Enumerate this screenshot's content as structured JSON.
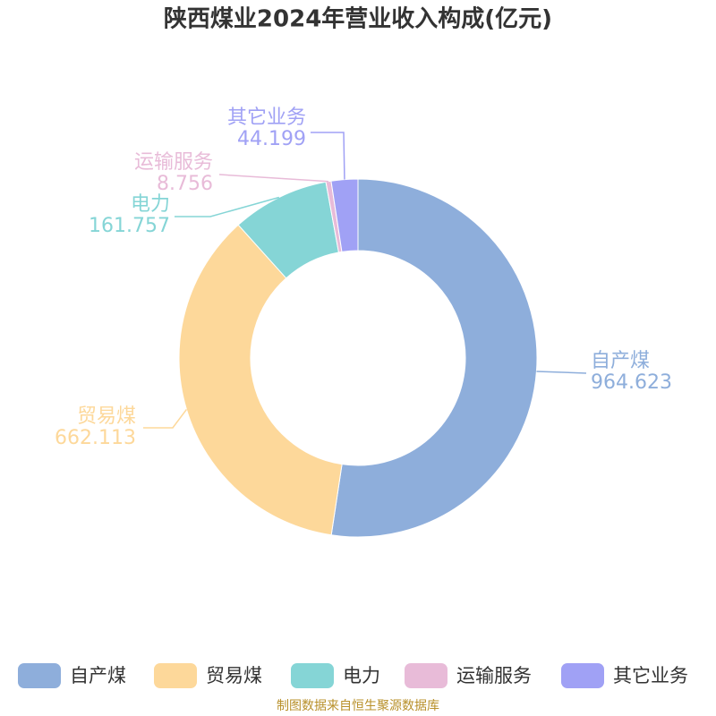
{
  "chart_data": {
    "type": "donut",
    "title": "陕西煤业2024年营业收入构成(亿元)",
    "categories": [
      "自产煤",
      "贸易煤",
      "电力",
      "运输服务",
      "其它业务"
    ],
    "values": [
      964.623,
      662.113,
      161.757,
      8.756,
      44.199
    ],
    "colors": [
      "#8eaedb",
      "#fdd89a",
      "#85d5d6",
      "#e8bbd8",
      "#a0a1f5"
    ],
    "legend": "bottom",
    "source": "制图数据来自恒生聚源数据库"
  }
}
